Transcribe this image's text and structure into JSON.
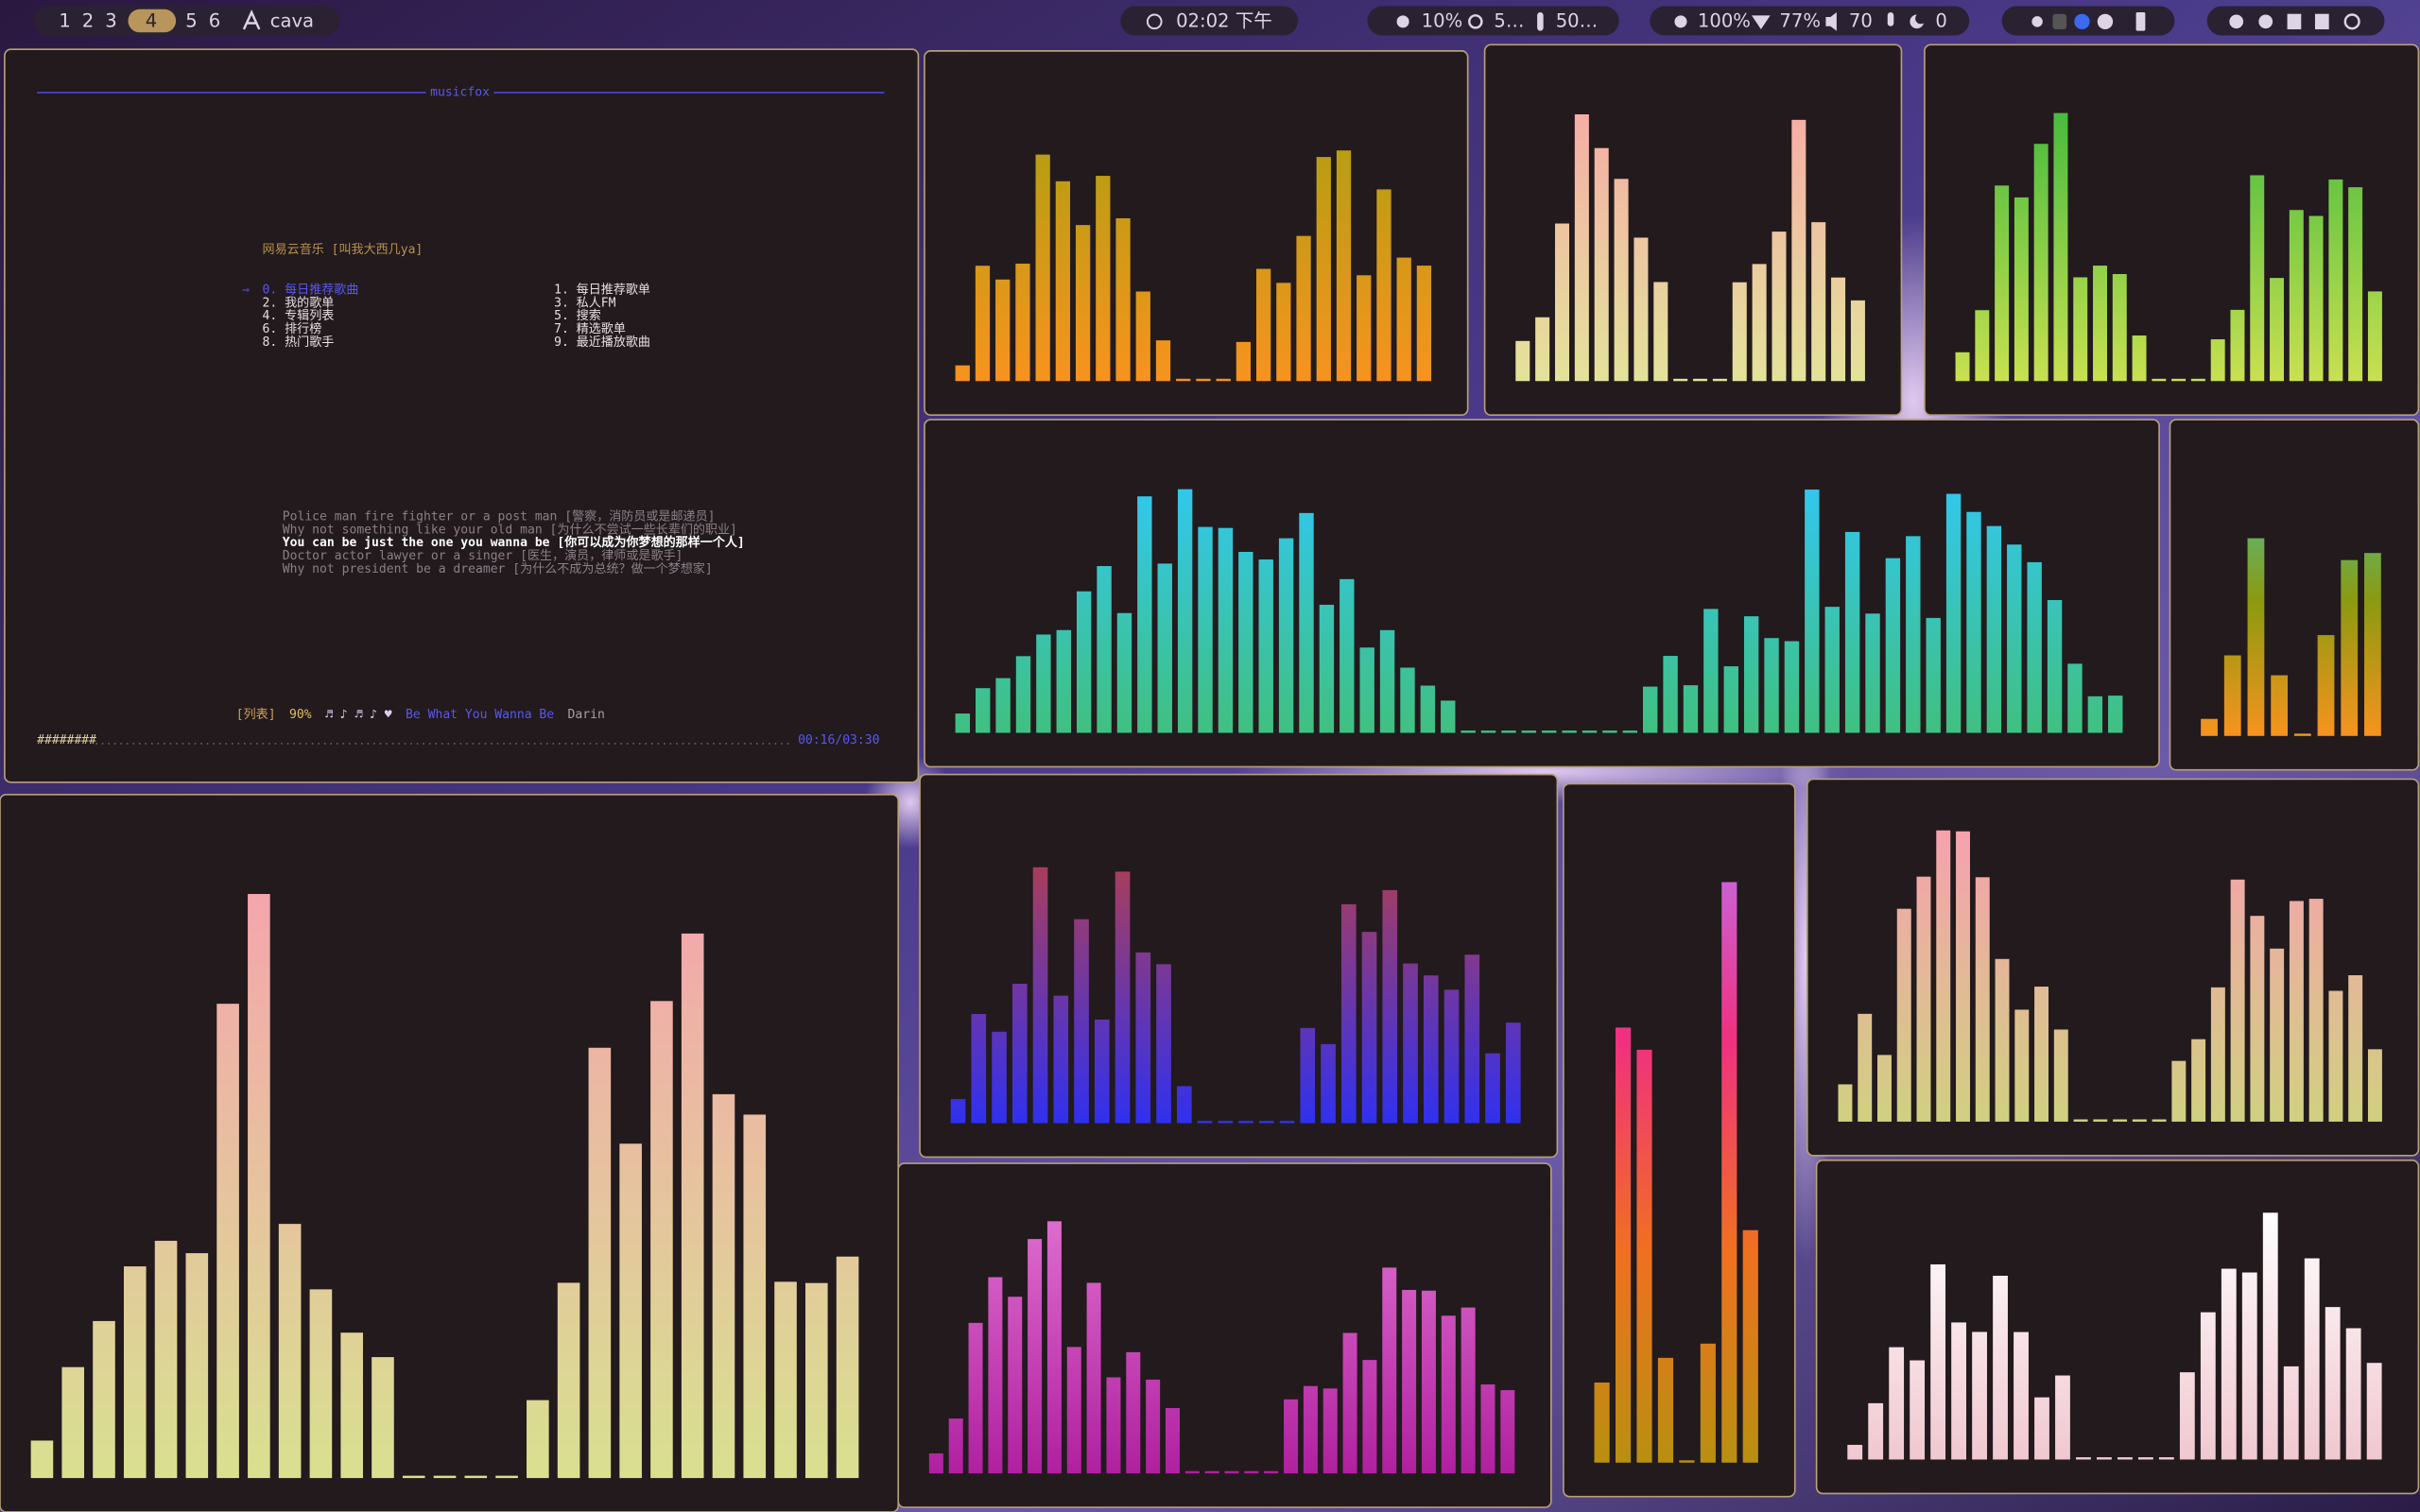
{
  "topbar": {
    "workspaces": [
      {
        "label": "1",
        "active": false
      },
      {
        "label": "2",
        "active": false
      },
      {
        "label": "3",
        "active": false
      },
      {
        "label": "4",
        "active": true
      },
      {
        "label": "5",
        "active": false
      },
      {
        "label": "6",
        "active": false
      }
    ],
    "window_title": "cava",
    "clock": "02:02 下午",
    "cpu": "10%",
    "memory": "5…",
    "temperature": "50…",
    "brightness": "100%",
    "wifi": "77%",
    "volume": "70",
    "idle": "0"
  },
  "musicfox": {
    "title": "musicfox",
    "heading": "网易云音乐 [叫我大西几ya]",
    "cursor": "⇒",
    "menu": [
      {
        "label": "0. 每日推荐歌曲",
        "selected": true
      },
      {
        "label": "1. 每日推荐歌单",
        "selected": false
      },
      {
        "label": "2. 我的歌单",
        "selected": false
      },
      {
        "label": "3. 私人FM",
        "selected": false
      },
      {
        "label": "4. 专辑列表",
        "selected": false
      },
      {
        "label": "5. 搜索",
        "selected": false
      },
      {
        "label": "6. 排行榜",
        "selected": false
      },
      {
        "label": "7. 精选歌单",
        "selected": false
      },
      {
        "label": "8. 热门歌手",
        "selected": false
      },
      {
        "label": "9. 最近播放歌曲",
        "selected": false
      }
    ],
    "lyrics": [
      {
        "text": "Police man fire fighter or a post man [警察，消防员或是邮递员]",
        "current": false
      },
      {
        "text": "Why not something like your old man [为什么不尝试一些长辈们的职业]",
        "current": false
      },
      {
        "text": "You can be just the one you wanna be [你可以成为你梦想的那样一个人]",
        "current": true
      },
      {
        "text": "Doctor actor lawyer or a singer [医生，演员，律师或是歌手]",
        "current": false
      },
      {
        "text": "Why not president be a dreamer [为什么不成为总统？做一个梦想家]",
        "current": false
      }
    ],
    "status": {
      "mode": "[列表]",
      "volume": "90%",
      "notes": "♬ ♪ ♬ ♪ ♥",
      "song": "Be What You Wanna Be",
      "artist": "Darin"
    },
    "progress": "########",
    "time": "00:16/03:30"
  }
}
